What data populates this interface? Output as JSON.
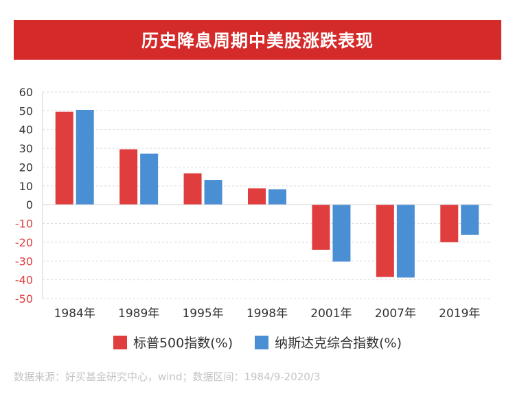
{
  "title": "历史降息周期中美股涨跌表现",
  "colors": {
    "title_bg": "#d42a2a",
    "sp500": "#e03e3e",
    "nasdaq": "#4a8fd4",
    "tick_positive": "#333333",
    "tick_negative": "#e03e3e"
  },
  "legend": {
    "sp500": "标普500指数(%)",
    "nasdaq": "纳斯达克综合指数(%)"
  },
  "source": "数据来源：好买基金研究中心，wind；数据区间：1984/9-2020/3",
  "chart_data": {
    "type": "bar",
    "title": "历史降息周期中美股涨跌表现",
    "categories": [
      "1984年",
      "1989年",
      "1995年",
      "1998年",
      "2001年",
      "2007年",
      "2019年"
    ],
    "series": [
      {
        "name": "标普500指数(%)",
        "color": "#e03e3e",
        "values": [
          49.5,
          29.5,
          16.7,
          8.7,
          -24,
          -38.5,
          -20
        ]
      },
      {
        "name": "纳斯达克综合指数(%)",
        "color": "#4a8fd4",
        "values": [
          50.5,
          27.2,
          13.2,
          8.2,
          -30.3,
          -38.8,
          -16
        ]
      }
    ],
    "ylim": [
      -50,
      60
    ],
    "yticks": [
      60,
      50,
      40,
      30,
      20,
      10,
      0,
      -10,
      -20,
      -30,
      -40,
      -50
    ],
    "grid": true,
    "legend_position": "bottom"
  }
}
